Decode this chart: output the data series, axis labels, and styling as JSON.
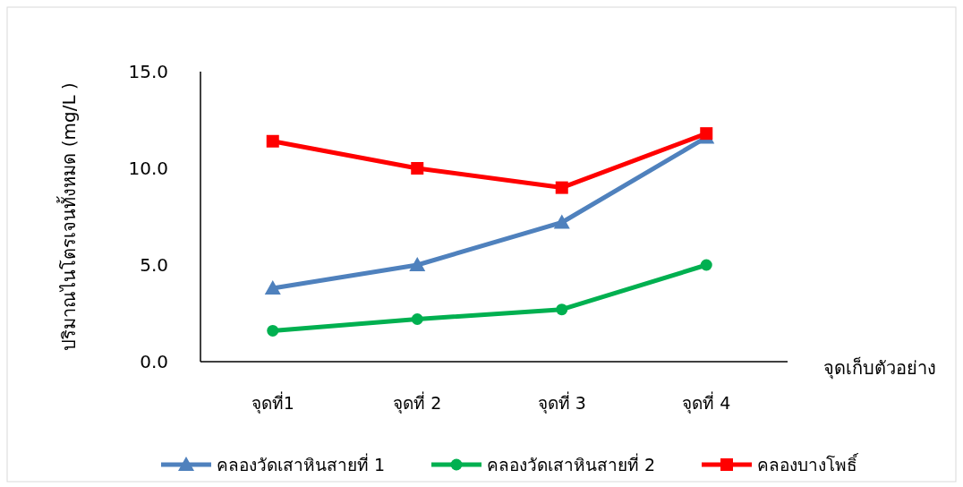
{
  "chart_data": {
    "type": "line",
    "xlabel": "จุดเก็บตัวอย่าง",
    "ylabel": "ปริมาณไนโตรเจนทั้งหมด (mg/L )",
    "categories": [
      "จุดที่1",
      "จุดที่ 2",
      "จุดที่ 3",
      "จุดที่ 4"
    ],
    "ylim": [
      0,
      15
    ],
    "yticks": [
      {
        "value": 0,
        "label": "0.0"
      },
      {
        "value": 5,
        "label": "5.0"
      },
      {
        "value": 10,
        "label": "10.0"
      },
      {
        "value": 15,
        "label": "15.0"
      }
    ],
    "grid": false,
    "legend": "bottom",
    "line_style": "solid",
    "series": [
      {
        "name": "คลองวัดเสาหินสายที่ 1",
        "color": "#4f81bd",
        "marker": "triangle",
        "values": [
          3.8,
          5.0,
          7.2,
          11.6
        ]
      },
      {
        "name": "คลองวัดเสาหินสายที่ 2",
        "color": "#00b050",
        "marker": "circle",
        "values": [
          1.6,
          2.2,
          2.7,
          5.0
        ]
      },
      {
        "name": "คลองบางโพธิ์",
        "color": "#ff0000",
        "marker": "square",
        "values": [
          11.4,
          10.0,
          9.0,
          11.8
        ]
      }
    ]
  }
}
